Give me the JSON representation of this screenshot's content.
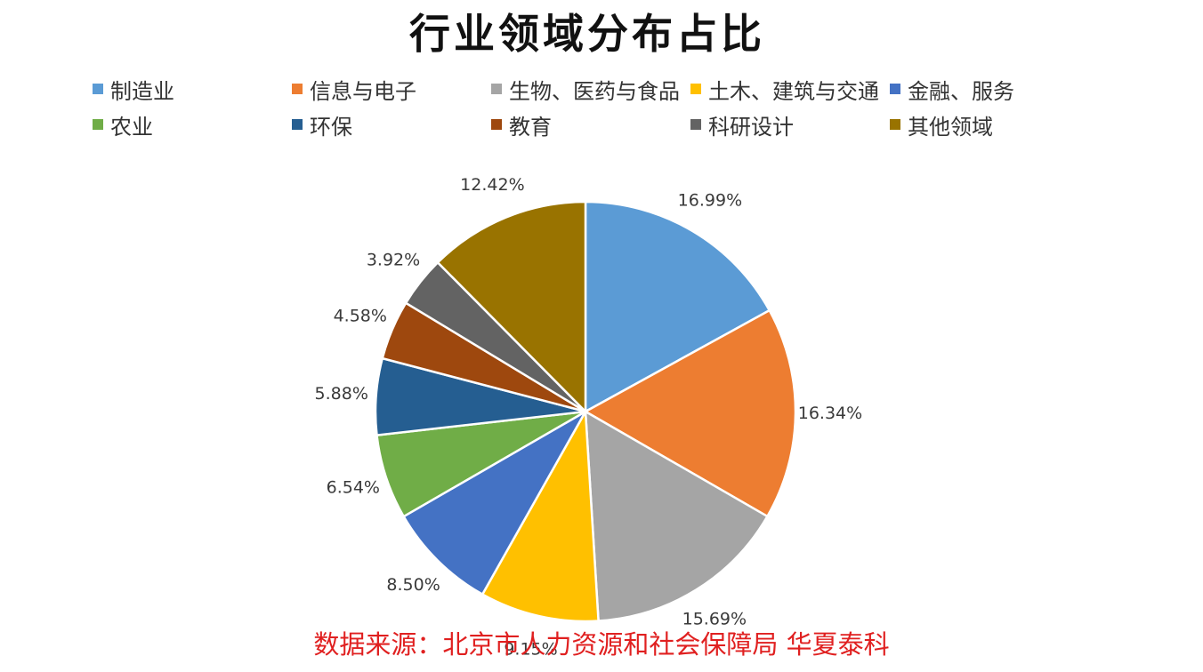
{
  "chart_data": {
    "type": "pie",
    "title": "行业领域分布占比",
    "legend_position": "top",
    "categories": [
      "制造业",
      "信息与电子",
      "生物、医药与食品",
      "土木、建筑与交通",
      "金融、服务",
      "农业",
      "环保",
      "教育",
      "科研设计",
      "其他领域"
    ],
    "values": [
      16.99,
      16.34,
      15.69,
      9.15,
      8.5,
      6.54,
      5.88,
      4.58,
      3.92,
      12.42
    ],
    "labels": [
      "16.99%",
      "16.34%",
      "15.69%",
      "9.15%",
      "8.50%",
      "6.54%",
      "5.88%",
      "4.58%",
      "3.92%",
      "12.42%"
    ],
    "colors": [
      "#5B9BD5",
      "#ED7D31",
      "#A5A5A5",
      "#FFC000",
      "#4472C4",
      "#70AD47",
      "#255E91",
      "#9E480E",
      "#636363",
      "#997300"
    ]
  },
  "source_text": "数据来源：北京市人力资源和社会保障局 华夏泰科"
}
